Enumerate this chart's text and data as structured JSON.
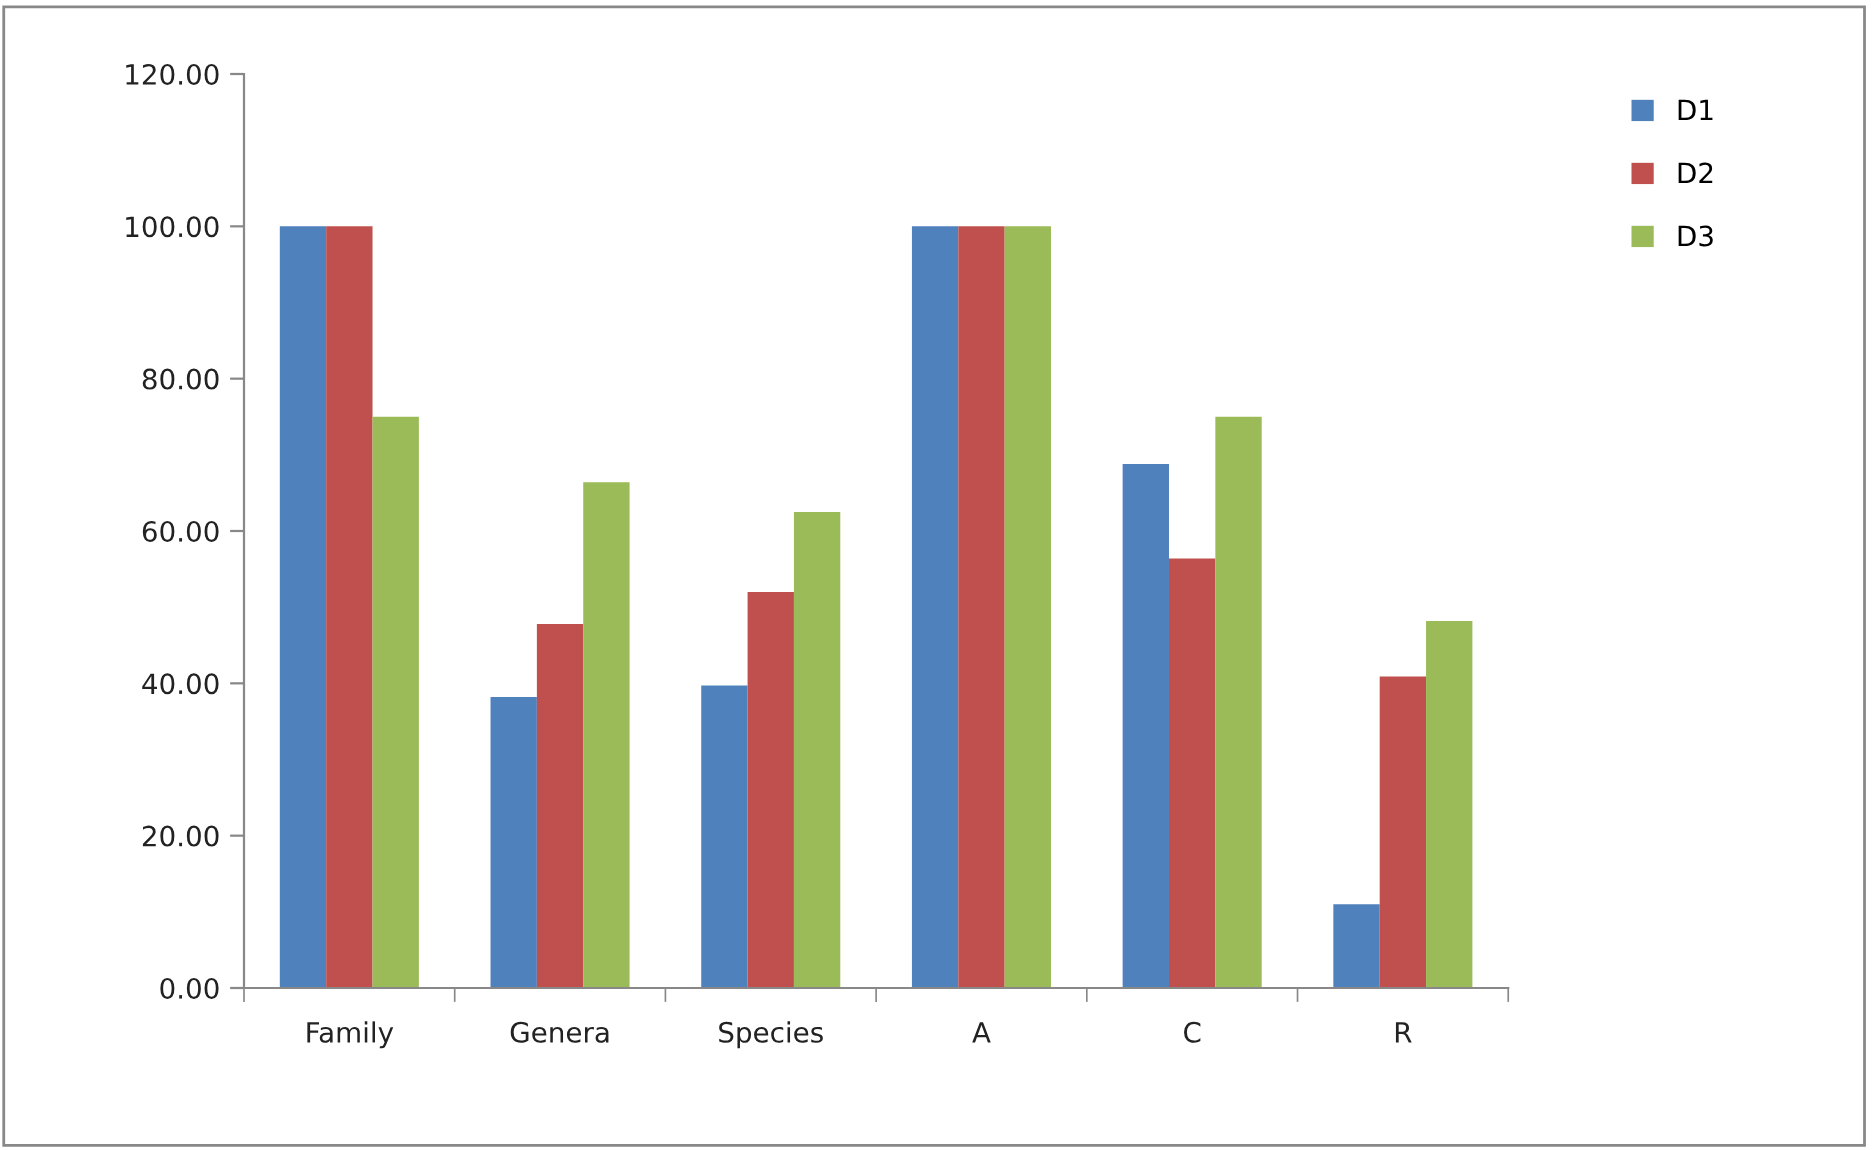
{
  "chart_data": {
    "type": "bar",
    "categories": [
      "Family",
      "Genera",
      "Species",
      "A",
      "C",
      "R"
    ],
    "series": [
      {
        "name": "D1",
        "color": "#4f81bd",
        "values": [
          100,
          38.2,
          39.7,
          100,
          68.8,
          11.0
        ]
      },
      {
        "name": "D2",
        "color": "#c0504d",
        "values": [
          100,
          47.8,
          52.0,
          100,
          56.4,
          40.9
        ]
      },
      {
        "name": "D3",
        "color": "#9bbb59",
        "values": [
          75.0,
          66.4,
          62.5,
          100,
          75.0,
          48.2
        ]
      }
    ],
    "ylim": [
      0,
      120
    ],
    "yticks": [
      {
        "value": 0,
        "label": "0.00"
      },
      {
        "value": 20,
        "label": "20.00"
      },
      {
        "value": 40,
        "label": "40.00"
      },
      {
        "value": 60,
        "label": "60.00"
      },
      {
        "value": 80,
        "label": "80.00"
      },
      {
        "value": 100,
        "label": "100.00"
      },
      {
        "value": 120,
        "label": "120.00"
      }
    ],
    "grid": false,
    "legend": "top right"
  }
}
